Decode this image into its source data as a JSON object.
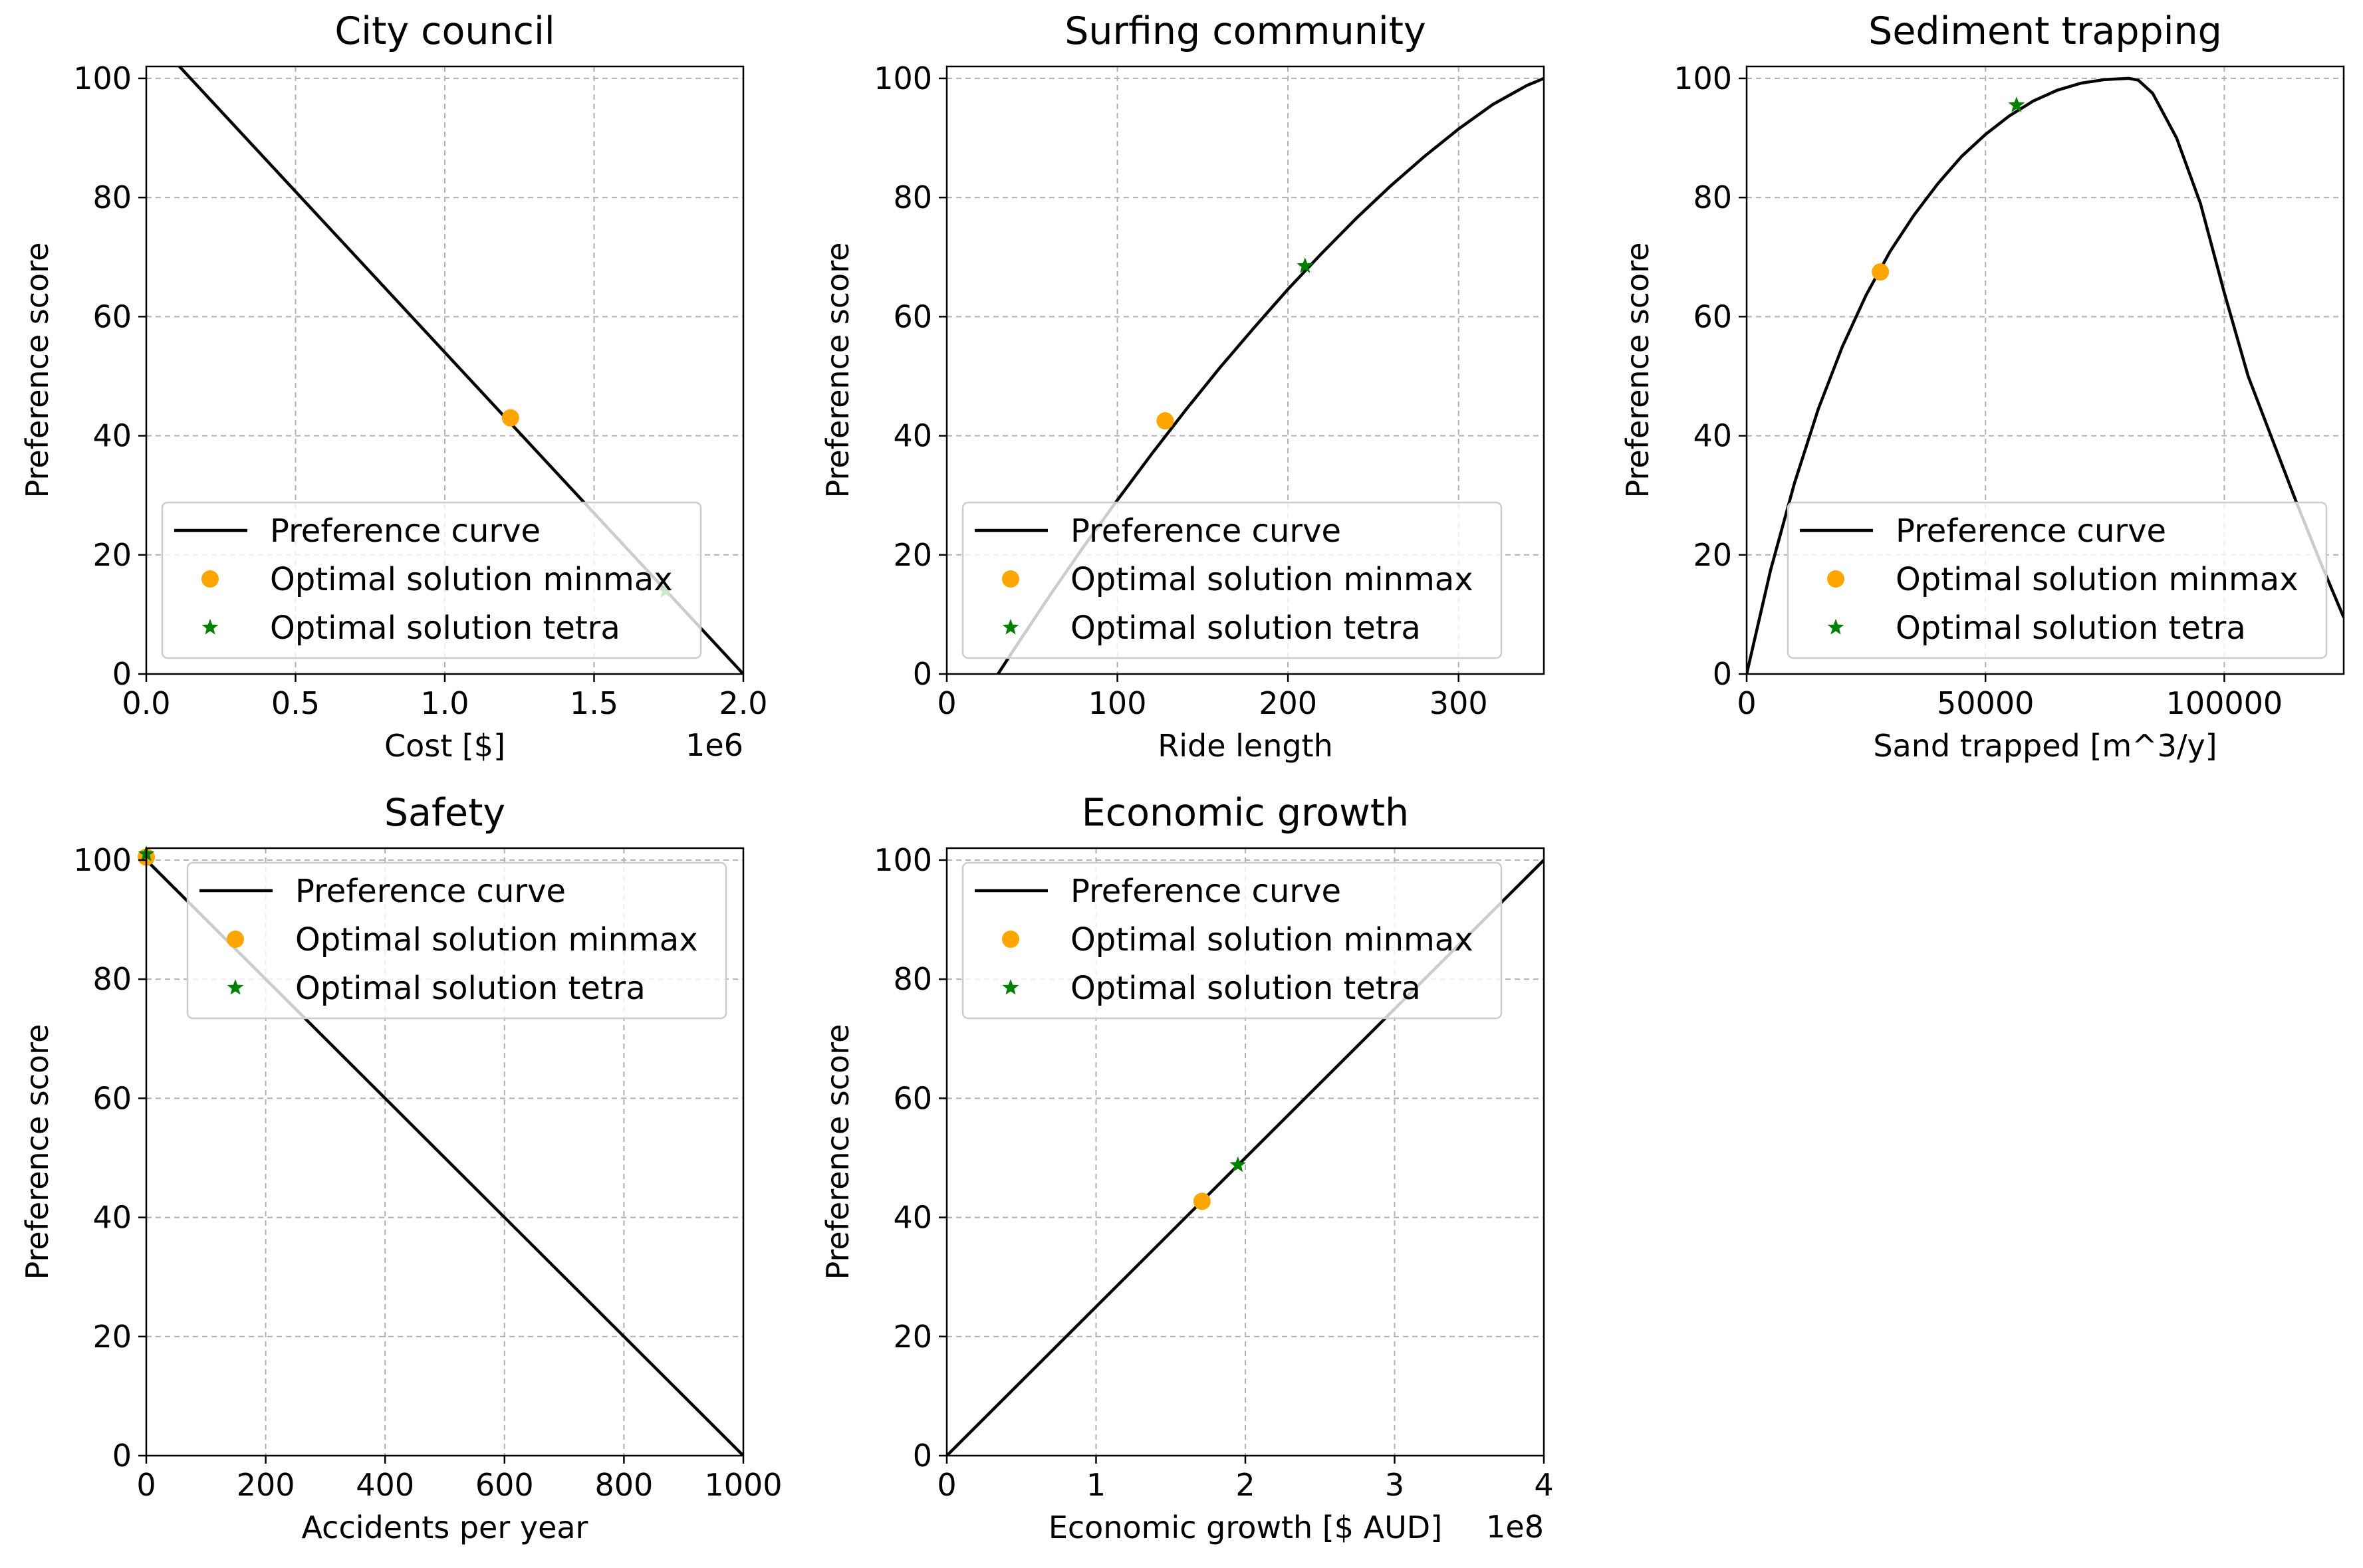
{
  "colors": {
    "curve": "#000000",
    "minmax": "#FFA500",
    "tetra": "#008000",
    "grid": "#b0b0b0"
  },
  "icons": {
    "minmax": "circle-marker",
    "tetra": "star-marker"
  },
  "chart_data": [
    {
      "type": "line",
      "title": "City council",
      "xlabel": "Cost [$]",
      "ylabel": "Preference score",
      "x_offset_label": "1e6",
      "xlim": [
        0,
        2000000
      ],
      "ylim": [
        0,
        102
      ],
      "xticks": [
        0,
        500000,
        1000000,
        1500000,
        2000000
      ],
      "xtick_labels": [
        "0.0",
        "0.5",
        "1.0",
        "1.5",
        "2.0"
      ],
      "yticks": [
        0,
        20,
        40,
        60,
        80,
        100
      ],
      "ytick_labels": [
        "0",
        "20",
        "40",
        "60",
        "80",
        "100"
      ],
      "grid": true,
      "legend_position": "lower left",
      "series": [
        {
          "name": "Preference curve",
          "kind": "line",
          "x": [
            0,
            2000000
          ],
          "y": [
            108,
            0
          ]
        },
        {
          "name": "Optimal solution minmax",
          "kind": "circle",
          "x": [
            1220000
          ],
          "y": [
            43
          ]
        },
        {
          "name": "Optimal solution tetra",
          "kind": "star",
          "x": [
            1740000
          ],
          "y": [
            14
          ]
        }
      ]
    },
    {
      "type": "line",
      "title": "Surfing community",
      "xlabel": "Ride length",
      "ylabel": "Preference score",
      "x_offset_label": "",
      "xlim": [
        0,
        350
      ],
      "ylim": [
        0,
        102
      ],
      "xticks": [
        0,
        100,
        200,
        300
      ],
      "xtick_labels": [
        "0",
        "100",
        "200",
        "300"
      ],
      "yticks": [
        0,
        20,
        40,
        60,
        80,
        100
      ],
      "ytick_labels": [
        "0",
        "20",
        "40",
        "60",
        "80",
        "100"
      ],
      "grid": true,
      "legend_position": "lower left",
      "series": [
        {
          "name": "Preference curve",
          "kind": "line",
          "x": [
            30,
            40,
            60,
            80,
            100,
            120,
            140,
            160,
            180,
            200,
            220,
            240,
            260,
            280,
            300,
            320,
            340,
            350
          ],
          "y": [
            0,
            4.4,
            13,
            21.3,
            29.2,
            36.9,
            44.3,
            51.4,
            58.1,
            64.6,
            70.7,
            76.5,
            81.9,
            86.9,
            91.5,
            95.6,
            98.8,
            100
          ]
        },
        {
          "name": "Optimal solution minmax",
          "kind": "circle",
          "x": [
            128
          ],
          "y": [
            42.5
          ]
        },
        {
          "name": "Optimal solution tetra",
          "kind": "star",
          "x": [
            210
          ],
          "y": [
            68.5
          ]
        }
      ]
    },
    {
      "type": "line",
      "title": "Sediment trapping",
      "xlabel": "Sand trapped [m^3/y]",
      "ylabel": "Preference score",
      "x_offset_label": "",
      "xlim": [
        0,
        125000
      ],
      "ylim": [
        0,
        102
      ],
      "xticks": [
        0,
        50000,
        100000
      ],
      "xtick_labels": [
        "0",
        "50000",
        "100000"
      ],
      "yticks": [
        0,
        20,
        40,
        60,
        80,
        100
      ],
      "ytick_labels": [
        "0",
        "20",
        "40",
        "60",
        "80",
        "100"
      ],
      "grid": true,
      "legend_position": "lower center",
      "series": [
        {
          "name": "Preference curve",
          "kind": "line",
          "x": [
            0,
            5000,
            10000,
            15000,
            20000,
            25000,
            30000,
            35000,
            40000,
            45000,
            50000,
            55000,
            60000,
            65000,
            70000,
            75000,
            80000,
            82000,
            85000,
            90000,
            95000,
            100000,
            105000,
            110000,
            115000,
            120000,
            125000
          ],
          "y": [
            0,
            17.4,
            32,
            44.5,
            54.9,
            63.6,
            70.9,
            77,
            82.3,
            86.9,
            90.6,
            93.7,
            96.2,
            98,
            99.2,
            99.8,
            100,
            99.7,
            97.5,
            90,
            79,
            64,
            50,
            39.5,
            29,
            19,
            9.5
          ]
        },
        {
          "name": "Optimal solution minmax",
          "kind": "circle",
          "x": [
            28000
          ],
          "y": [
            67.5
          ]
        },
        {
          "name": "Optimal solution tetra",
          "kind": "star",
          "x": [
            56500
          ],
          "y": [
            95.5
          ]
        }
      ]
    },
    {
      "type": "line",
      "title": "Safety",
      "xlabel": "Accidents per year",
      "ylabel": "Preference score",
      "x_offset_label": "",
      "xlim": [
        0,
        1000
      ],
      "ylim": [
        0,
        102
      ],
      "xticks": [
        0,
        200,
        400,
        600,
        800,
        1000
      ],
      "xtick_labels": [
        "0",
        "200",
        "400",
        "600",
        "800",
        "1000"
      ],
      "yticks": [
        0,
        20,
        40,
        60,
        80,
        100
      ],
      "ytick_labels": [
        "0",
        "20",
        "40",
        "60",
        "80",
        "100"
      ],
      "grid": true,
      "legend_position": "upper right",
      "series": [
        {
          "name": "Preference curve",
          "kind": "line",
          "x": [
            0,
            1000
          ],
          "y": [
            100,
            0
          ]
        },
        {
          "name": "Optimal solution minmax",
          "kind": "circle",
          "x": [
            0
          ],
          "y": [
            100.5
          ]
        },
        {
          "name": "Optimal solution tetra",
          "kind": "star",
          "x": [
            0
          ],
          "y": [
            101
          ]
        }
      ]
    },
    {
      "type": "line",
      "title": "Economic growth",
      "xlabel": "Economic growth [$ AUD]",
      "ylabel": "Preference score",
      "x_offset_label": "1e8",
      "xlim": [
        0,
        400000000
      ],
      "ylim": [
        0,
        102
      ],
      "xticks": [
        0,
        100000000,
        200000000,
        300000000,
        400000000
      ],
      "xtick_labels": [
        "0",
        "1",
        "2",
        "3",
        "4"
      ],
      "yticks": [
        0,
        20,
        40,
        60,
        80,
        100
      ],
      "ytick_labels": [
        "0",
        "20",
        "40",
        "60",
        "80",
        "100"
      ],
      "grid": true,
      "legend_position": "upper left",
      "series": [
        {
          "name": "Preference curve",
          "kind": "line",
          "x": [
            0,
            400000000
          ],
          "y": [
            0,
            100
          ]
        },
        {
          "name": "Optimal solution minmax",
          "kind": "circle",
          "x": [
            171000000
          ],
          "y": [
            42.7
          ]
        },
        {
          "name": "Optimal solution tetra",
          "kind": "star",
          "x": [
            195000000
          ],
          "y": [
            48.8
          ]
        }
      ]
    }
  ]
}
